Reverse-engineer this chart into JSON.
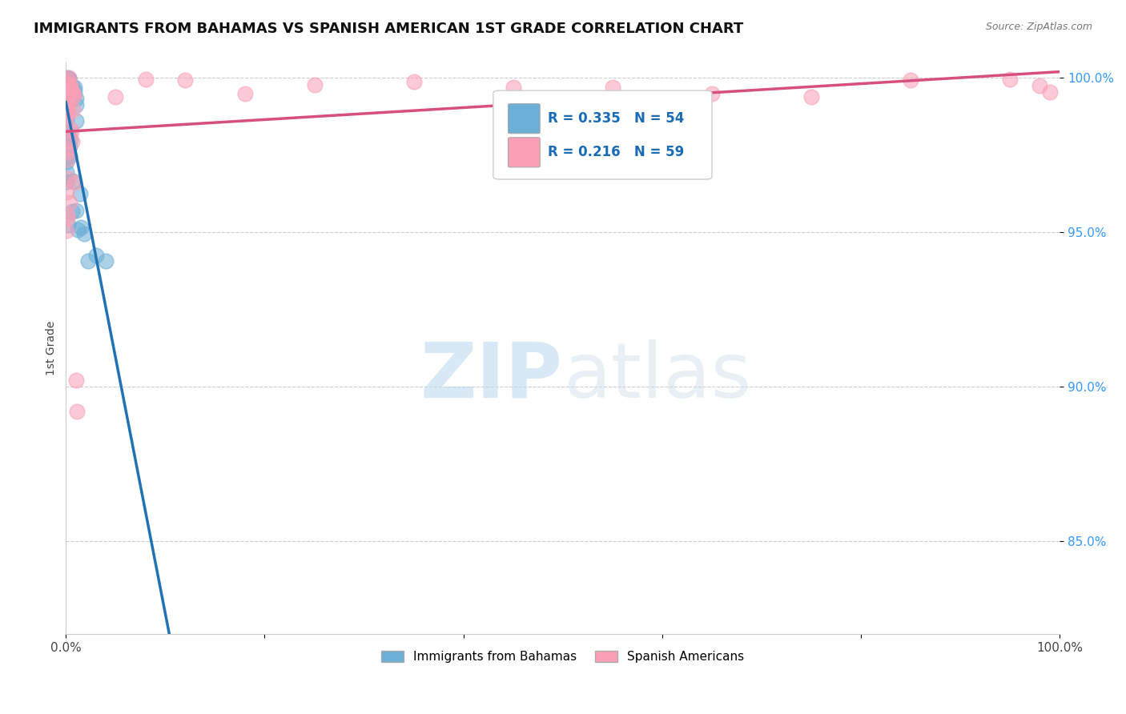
{
  "title": "IMMIGRANTS FROM BAHAMAS VS SPANISH AMERICAN 1ST GRADE CORRELATION CHART",
  "source": "Source: ZipAtlas.com",
  "ylabel": "1st Grade",
  "watermark_zip": "ZIP",
  "watermark_atlas": "atlas",
  "xlim": [
    0.0,
    1.0
  ],
  "ylim": [
    0.82,
    1.005
  ],
  "yticks": [
    0.85,
    0.9,
    0.95,
    1.0
  ],
  "ytick_labels": [
    "85.0%",
    "90.0%",
    "95.0%",
    "100.0%"
  ],
  "blue_label": "Immigrants from Bahamas",
  "pink_label": "Spanish Americans",
  "blue_R": 0.335,
  "blue_N": 54,
  "pink_R": 0.216,
  "pink_N": 59,
  "blue_color": "#6baed6",
  "pink_color": "#fa9fb5",
  "blue_line_color": "#2171b5",
  "pink_line_color": "#d64f7e",
  "title_fontsize": 13,
  "source_fontsize": 9,
  "tick_fontsize": 11,
  "legend_fontsize": 11,
  "ylabel_fontsize": 10,
  "scatter_size": 180,
  "scatter_alpha": 0.55,
  "grid_color": "#cccccc",
  "grid_style": "--",
  "seed": 42
}
